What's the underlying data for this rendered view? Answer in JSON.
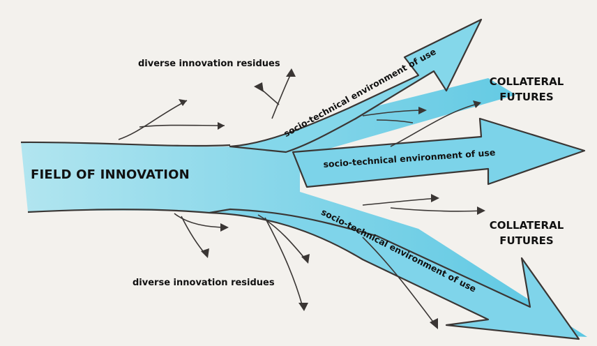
{
  "diagram": {
    "title": "FIELD OF INNOVATION",
    "residue_top": "diverse innovation residues",
    "residue_bottom": "diverse innovation residues",
    "collateral_top": [
      "COLLATERAL",
      "FUTURES"
    ],
    "collateral_bottom": [
      "COLLATERAL",
      "FUTURES"
    ],
    "environment_top": "socio-technical environment of use",
    "environment_middle": "socio-technical environment of use",
    "environment_bottom": "socio-technical environment of use",
    "colors": {
      "flow": "#7fd6ea",
      "flow_core": "#3fc0e0",
      "outline": "#3a3634",
      "paper": "#f3f1ed"
    }
  }
}
